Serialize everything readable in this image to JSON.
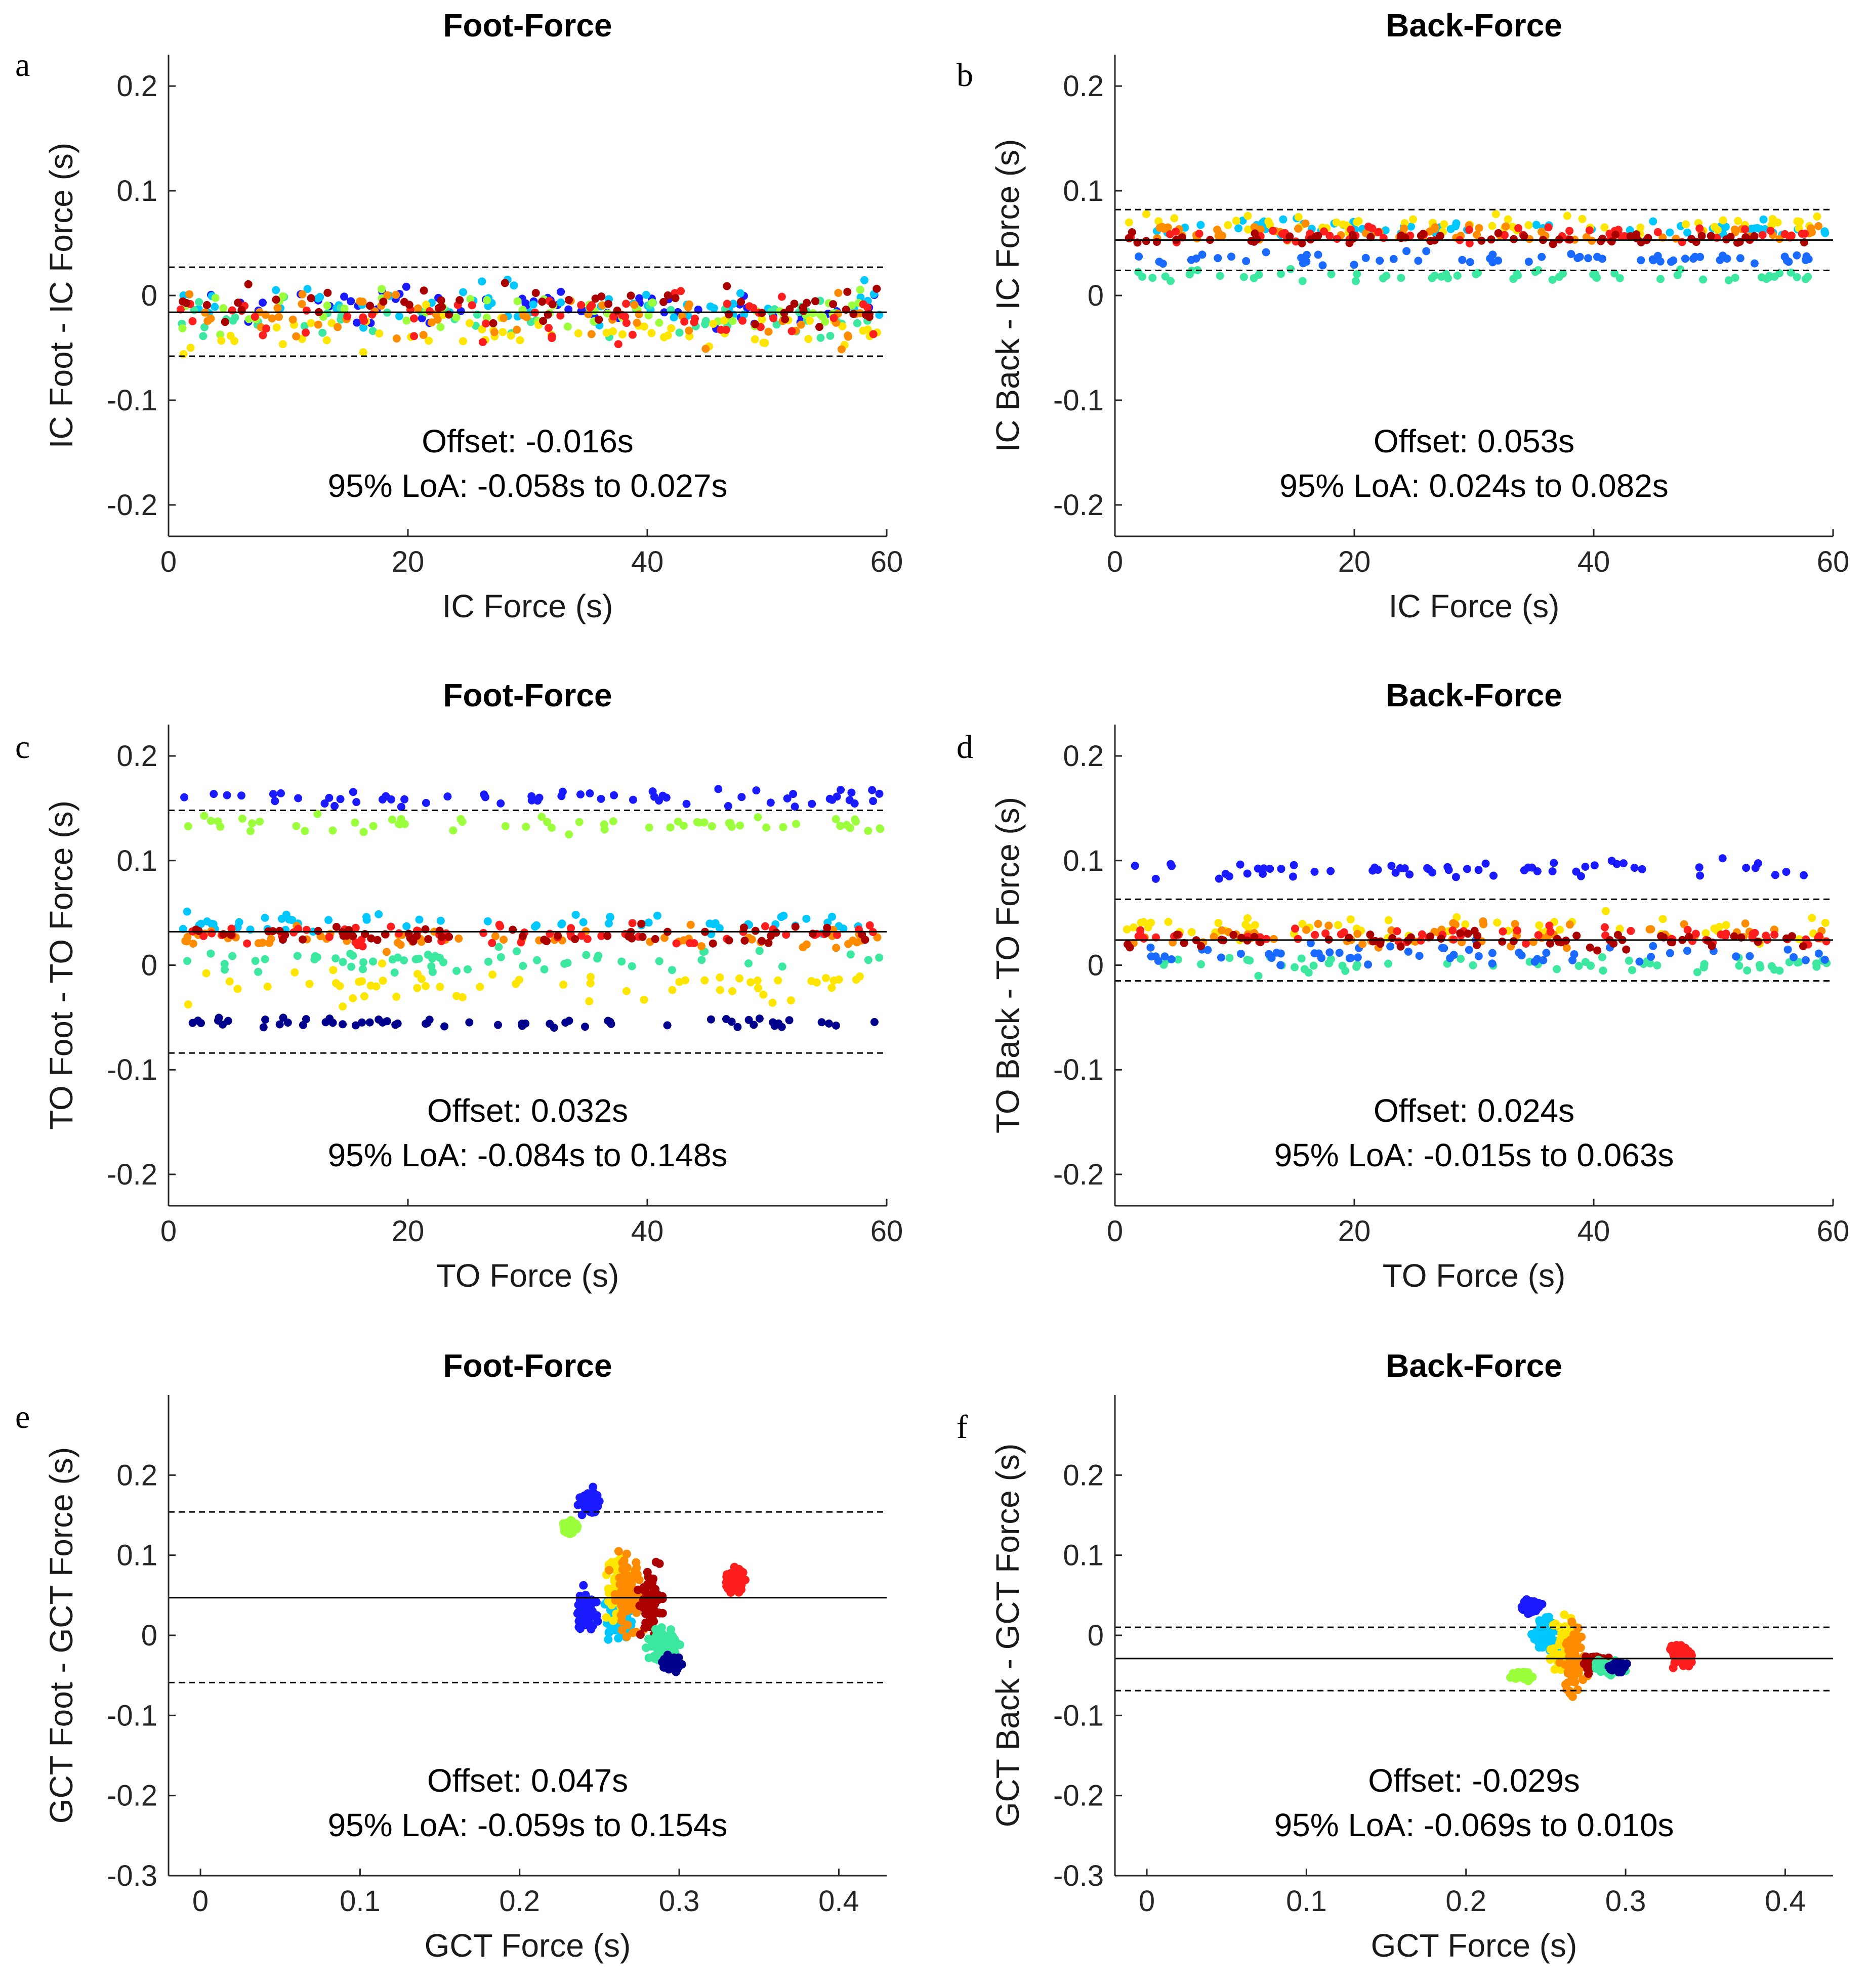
{
  "chart_data": [
    {
      "panel": "a",
      "type": "scatter",
      "title": "Foot-Force",
      "xlabel": "IC Force (s)",
      "ylabel": "IC Foot - IC Force (s)",
      "xlim": [
        0,
        60
      ],
      "ylim": [
        -0.23,
        0.23
      ],
      "xticks": [
        0,
        20,
        40,
        60
      ],
      "yticks": [
        -0.2,
        -0.1,
        0,
        0.1,
        0.2
      ],
      "xtick_labels": [
        "0",
        "20",
        "40",
        "60"
      ],
      "ytick_labels": [
        "-0.2",
        "-0.1",
        "0",
        "0.1",
        "0.2"
      ],
      "offset": -0.016,
      "loa": [
        -0.058,
        0.027
      ],
      "annotation_offset": "Offset: -0.016s",
      "annotation_loa": "95% LoA: -0.058s to 0.027s",
      "series_bands": [
        {
          "color": "#1a1aff",
          "center": -0.012,
          "spread": 0.018
        },
        {
          "color": "#00c8ff",
          "center": -0.008,
          "spread": 0.02
        },
        {
          "color": "#3ce8a0",
          "center": -0.02,
          "spread": 0.018
        },
        {
          "color": "#9cff3c",
          "center": -0.015,
          "spread": 0.02
        },
        {
          "color": "#ffe600",
          "center": -0.035,
          "spread": 0.02
        },
        {
          "color": "#ff8c00",
          "center": -0.02,
          "spread": 0.025
        },
        {
          "color": "#ff1e1e",
          "center": -0.02,
          "spread": 0.025
        },
        {
          "color": "#aa0000",
          "center": -0.01,
          "spread": 0.02
        }
      ]
    },
    {
      "panel": "b",
      "type": "scatter",
      "title": "Back-Force",
      "xlabel": "IC Force (s)",
      "ylabel": "IC Back - IC Force (s)",
      "xlim": [
        0,
        60
      ],
      "ylim": [
        -0.23,
        0.23
      ],
      "xticks": [
        0,
        20,
        40,
        60
      ],
      "yticks": [
        -0.2,
        -0.1,
        0,
        0.1,
        0.2
      ],
      "xtick_labels": [
        "0",
        "20",
        "40",
        "60"
      ],
      "ytick_labels": [
        "-0.2",
        "-0.1",
        "0",
        "0.1",
        "0.2"
      ],
      "offset": 0.053,
      "loa": [
        0.024,
        0.082
      ],
      "annotation_offset": "Offset: 0.053s",
      "annotation_loa": "95% LoA: 0.024s to 0.082s",
      "series_bands": [
        {
          "color": "#3ce8a0",
          "center": 0.018,
          "spread": 0.006
        },
        {
          "color": "#1a6aff",
          "center": 0.035,
          "spread": 0.006
        },
        {
          "color": "#00c8ff",
          "center": 0.065,
          "spread": 0.008
        },
        {
          "color": "#ffe600",
          "center": 0.068,
          "spread": 0.008
        },
        {
          "color": "#ff8c00",
          "center": 0.06,
          "spread": 0.008
        },
        {
          "color": "#ff1e1e",
          "center": 0.058,
          "spread": 0.007
        },
        {
          "color": "#aa0000",
          "center": 0.055,
          "spread": 0.006
        }
      ]
    },
    {
      "panel": "c",
      "type": "scatter",
      "title": "Foot-Force",
      "xlabel": "TO Force (s)",
      "ylabel": "TO Foot - TO Force (s)",
      "xlim": [
        0,
        60
      ],
      "ylim": [
        -0.23,
        0.23
      ],
      "xticks": [
        0,
        20,
        40,
        60
      ],
      "yticks": [
        -0.2,
        -0.1,
        0,
        0.1,
        0.2
      ],
      "xtick_labels": [
        "0",
        "20",
        "40",
        "60"
      ],
      "ytick_labels": [
        "-0.2",
        "-0.1",
        "0",
        "0.1",
        "0.2"
      ],
      "offset": 0.032,
      "loa": [
        -0.084,
        0.148
      ],
      "annotation_offset": "Offset: 0.032s",
      "annotation_loa": "95% LoA: -0.084s to 0.148s",
      "series_bands": [
        {
          "color": "#1a1aff",
          "center": 0.16,
          "spread": 0.01
        },
        {
          "color": "#9cff3c",
          "center": 0.135,
          "spread": 0.01
        },
        {
          "color": "#00c8ff",
          "center": 0.04,
          "spread": 0.01
        },
        {
          "color": "#3ce8a0",
          "center": 0.005,
          "spread": 0.012
        },
        {
          "color": "#ffe600",
          "center": -0.02,
          "spread": 0.015
        },
        {
          "color": "#ff8c00",
          "center": 0.025,
          "spread": 0.01
        },
        {
          "color": "#ff1e1e",
          "center": 0.03,
          "spread": 0.01
        },
        {
          "color": "#aa0000",
          "center": 0.03,
          "spread": 0.008
        },
        {
          "color": "#00008c",
          "center": -0.055,
          "spread": 0.005
        }
      ]
    },
    {
      "panel": "d",
      "type": "scatter",
      "title": "Back-Force",
      "xlabel": "TO Force (s)",
      "ylabel": "TO Back - TO Force (s)",
      "xlim": [
        0,
        60
      ],
      "ylim": [
        -0.23,
        0.23
      ],
      "xticks": [
        0,
        20,
        40,
        60
      ],
      "yticks": [
        -0.2,
        -0.1,
        0,
        0.1,
        0.2
      ],
      "xtick_labels": [
        "0",
        "20",
        "40",
        "60"
      ],
      "ytick_labels": [
        "-0.2",
        "-0.1",
        "0",
        "0.1",
        "0.2"
      ],
      "offset": 0.024,
      "loa": [
        -0.015,
        0.063
      ],
      "annotation_offset": "Offset: 0.024s",
      "annotation_loa": "95% LoA: -0.015s to 0.063s",
      "series_bands": [
        {
          "color": "#1a1aff",
          "center": 0.09,
          "spread": 0.01
        },
        {
          "color": "#3ce8a0",
          "center": 0.0,
          "spread": 0.008
        },
        {
          "color": "#1a6aff",
          "center": 0.01,
          "spread": 0.01
        },
        {
          "color": "#ffe600",
          "center": 0.035,
          "spread": 0.012
        },
        {
          "color": "#ff8c00",
          "center": 0.03,
          "spread": 0.012
        },
        {
          "color": "#ff1e1e",
          "center": 0.028,
          "spread": 0.01
        },
        {
          "color": "#aa0000",
          "center": 0.024,
          "spread": 0.008
        }
      ]
    },
    {
      "panel": "e",
      "type": "scatter",
      "title": "Foot-Force",
      "xlabel": "GCT Force (s)",
      "ylabel": "GCT Foot - GCT Force (s)",
      "xlim": [
        -0.02,
        0.43
      ],
      "ylim": [
        -0.3,
        0.3
      ],
      "xticks": [
        0,
        0.1,
        0.2,
        0.3,
        0.4
      ],
      "yticks": [
        -0.3,
        -0.2,
        -0.1,
        0,
        0.1,
        0.2
      ],
      "xtick_labels": [
        "0",
        "0.1",
        "0.2",
        "0.3",
        "0.4"
      ],
      "ytick_labels": [
        "-0.3",
        "-0.2",
        "-0.1",
        "0",
        "0.1",
        "0.2"
      ],
      "offset": 0.047,
      "loa": [
        -0.059,
        0.154
      ],
      "annotation_offset": "Offset: 0.047s",
      "annotation_loa": "95% LoA: -0.059s to 0.154s",
      "clusters": [
        {
          "color": "#1a1aff",
          "x": 0.244,
          "y": 0.165,
          "sx": 0.006,
          "sy": 0.015
        },
        {
          "color": "#9cff3c",
          "x": 0.232,
          "y": 0.135,
          "sx": 0.005,
          "sy": 0.008
        },
        {
          "color": "#1a1aff",
          "x": 0.242,
          "y": 0.03,
          "sx": 0.006,
          "sy": 0.025
        },
        {
          "color": "#00c8ff",
          "x": 0.262,
          "y": 0.02,
          "sx": 0.008,
          "sy": 0.025
        },
        {
          "color": "#ffe600",
          "x": 0.262,
          "y": 0.06,
          "sx": 0.008,
          "sy": 0.04
        },
        {
          "color": "#ff8c00",
          "x": 0.268,
          "y": 0.05,
          "sx": 0.008,
          "sy": 0.045
        },
        {
          "color": "#aa0000",
          "x": 0.282,
          "y": 0.04,
          "sx": 0.007,
          "sy": 0.035
        },
        {
          "color": "#3ce8a0",
          "x": 0.29,
          "y": -0.01,
          "sx": 0.01,
          "sy": 0.02
        },
        {
          "color": "#00008c",
          "x": 0.295,
          "y": -0.035,
          "sx": 0.005,
          "sy": 0.008
        },
        {
          "color": "#ff1e1e",
          "x": 0.335,
          "y": 0.068,
          "sx": 0.007,
          "sy": 0.015
        }
      ]
    },
    {
      "panel": "f",
      "type": "scatter",
      "title": "Back-Force",
      "xlabel": "GCT Force (s)",
      "ylabel": "GCT Back - GCT Force (s)",
      "xlim": [
        -0.02,
        0.43
      ],
      "ylim": [
        -0.3,
        0.3
      ],
      "xticks": [
        0,
        0.1,
        0.2,
        0.3,
        0.4
      ],
      "yticks": [
        -0.3,
        -0.2,
        -0.1,
        0,
        0.1,
        0.2
      ],
      "xtick_labels": [
        "0",
        "0.1",
        "0.2",
        "0.3",
        "0.4"
      ],
      "ytick_labels": [
        "-0.3",
        "-0.2",
        "-0.1",
        "0",
        "0.1",
        "0.2"
      ],
      "offset": -0.029,
      "loa": [
        -0.069,
        0.01
      ],
      "annotation_offset": "Offset: -0.029s",
      "annotation_loa": "95% LoA: -0.069s to 0.010s",
      "clusters": [
        {
          "color": "#1a1aff",
          "x": 0.241,
          "y": 0.035,
          "sx": 0.006,
          "sy": 0.008
        },
        {
          "color": "#00c8ff",
          "x": 0.25,
          "y": 0.0,
          "sx": 0.007,
          "sy": 0.02
        },
        {
          "color": "#9cff3c",
          "x": 0.236,
          "y": -0.05,
          "sx": 0.006,
          "sy": 0.006
        },
        {
          "color": "#ffe600",
          "x": 0.262,
          "y": -0.01,
          "sx": 0.008,
          "sy": 0.03
        },
        {
          "color": "#ff8c00",
          "x": 0.268,
          "y": -0.03,
          "sx": 0.008,
          "sy": 0.04
        },
        {
          "color": "#aa0000",
          "x": 0.28,
          "y": -0.035,
          "sx": 0.007,
          "sy": 0.01
        },
        {
          "color": "#3ce8a0",
          "x": 0.29,
          "y": -0.04,
          "sx": 0.008,
          "sy": 0.008
        },
        {
          "color": "#00008c",
          "x": 0.295,
          "y": -0.04,
          "sx": 0.005,
          "sy": 0.006
        },
        {
          "color": "#ff1e1e",
          "x": 0.335,
          "y": -0.025,
          "sx": 0.007,
          "sy": 0.012
        }
      ]
    }
  ]
}
